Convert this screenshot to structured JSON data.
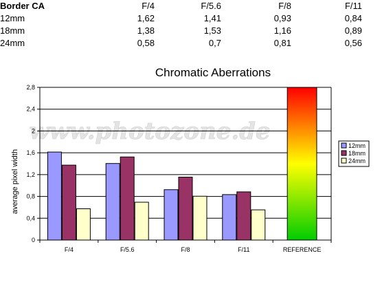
{
  "table": {
    "header": [
      "Border CA",
      "F/4",
      "F/5.6",
      "F/8",
      "F/11"
    ],
    "rows": [
      [
        "12mm",
        "1,62",
        "1,41",
        "0,93",
        "0,84"
      ],
      [
        "18mm",
        "1,38",
        "1,53",
        "1,16",
        "0,89"
      ],
      [
        "24mm",
        "0,58",
        "0,7",
        "0,81",
        "0,56"
      ]
    ]
  },
  "watermark": "www.photozone.de",
  "chart_data": {
    "type": "bar",
    "title": "Chromatic Aberrations",
    "ylabel": "average pixel width",
    "xlabel": "",
    "categories": [
      "F/4",
      "F/5.6",
      "F/8",
      "F/11",
      "REFERENCE"
    ],
    "series": [
      {
        "name": "12mm",
        "color": "#9999ff",
        "values": [
          1.62,
          1.41,
          0.93,
          0.84,
          null
        ]
      },
      {
        "name": "18mm",
        "color": "#993366",
        "values": [
          1.38,
          1.53,
          1.16,
          0.89,
          null
        ]
      },
      {
        "name": "24mm",
        "color": "#ffffcc",
        "values": [
          0.58,
          0.7,
          0.81,
          0.56,
          null
        ]
      }
    ],
    "reference": {
      "category": "REFERENCE",
      "value": 2.8,
      "gradient": [
        "#ff0000",
        "#ffff00",
        "#00cc00"
      ]
    },
    "ylim": [
      0,
      2.8
    ],
    "yticks": [
      0,
      0.4,
      0.8,
      1.2,
      1.6,
      2,
      2.4,
      2.8
    ],
    "ytick_labels": [
      "0",
      "0,4",
      "0,8",
      "1,2",
      "1,6",
      "2",
      "2,4",
      "2,8"
    ],
    "grid": true,
    "legend": "right"
  }
}
